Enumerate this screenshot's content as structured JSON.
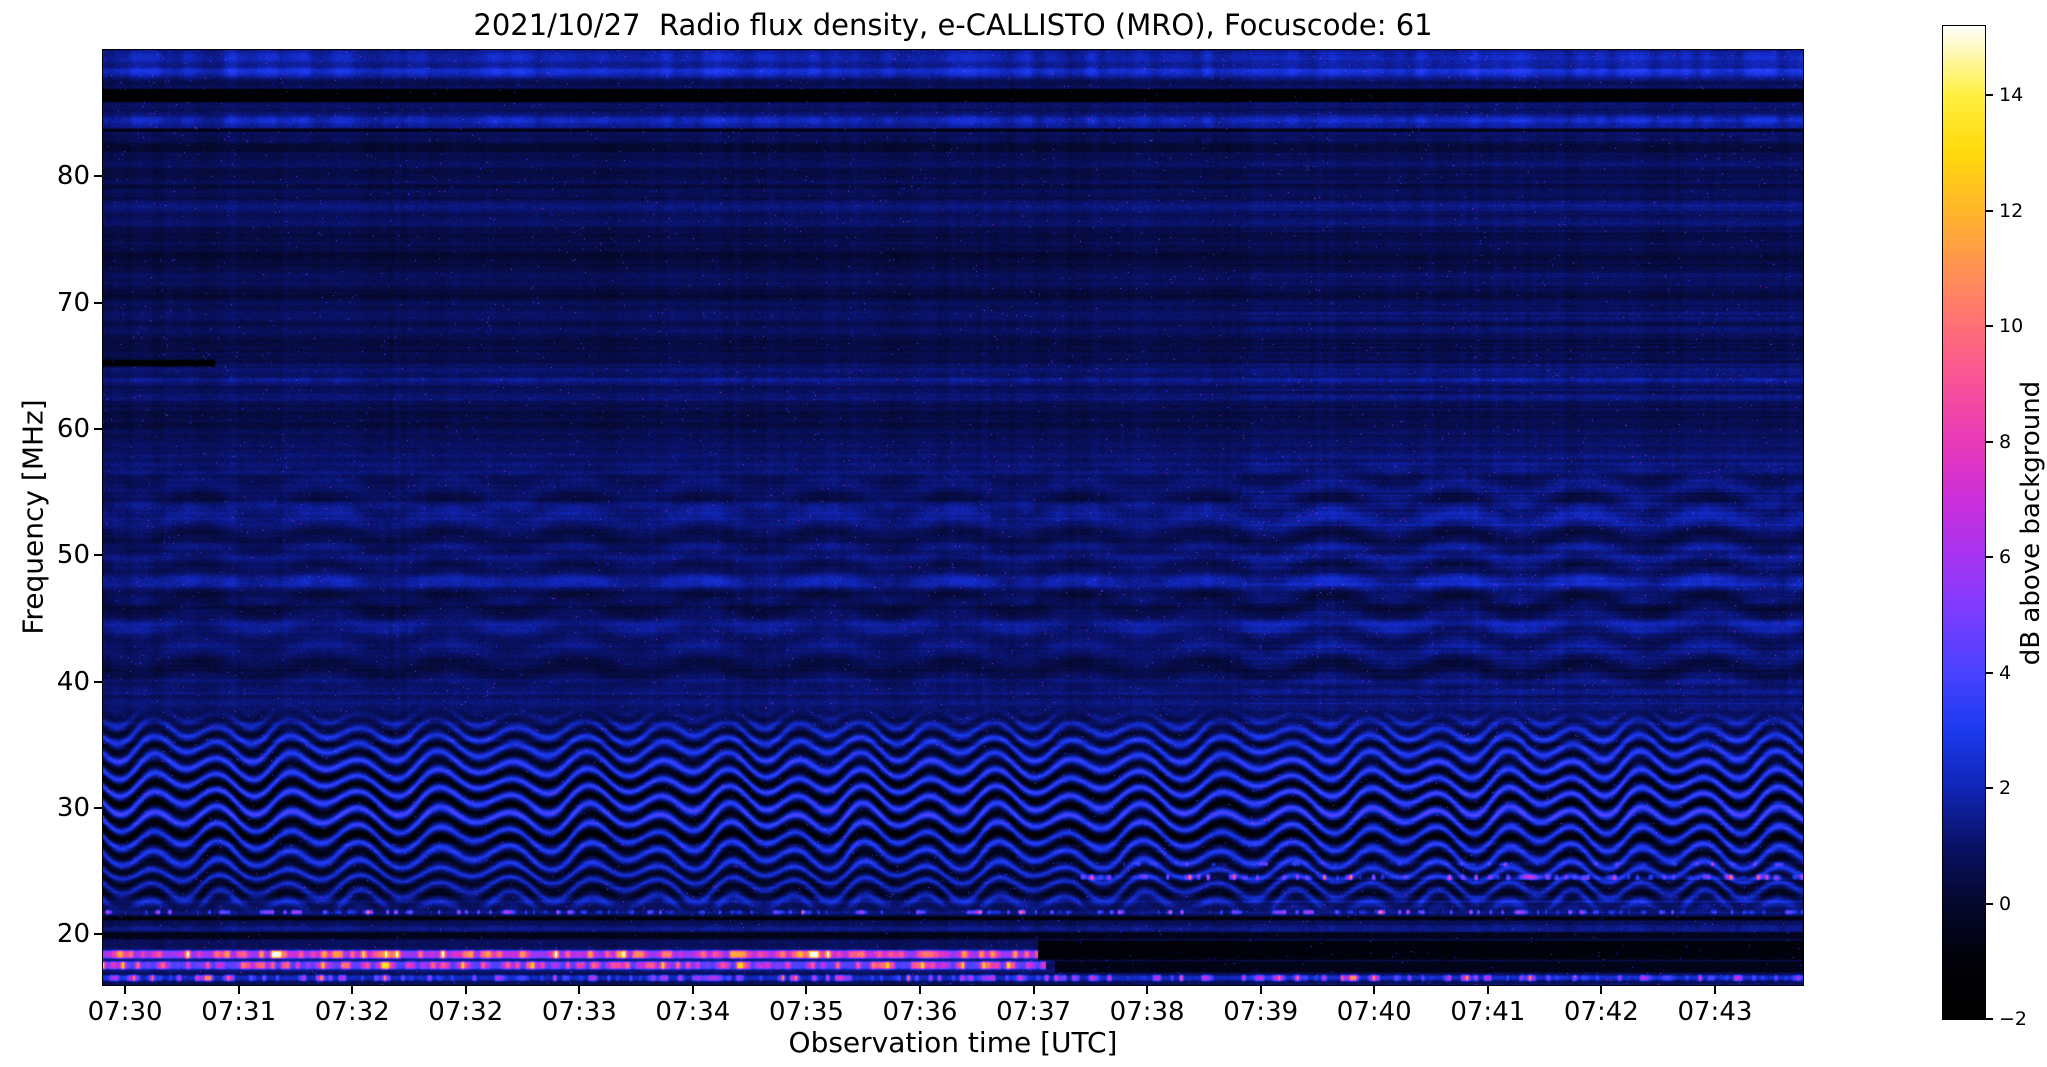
{
  "figure": {
    "background": "#ffffff"
  },
  "chart_data": {
    "type": "heatmap",
    "title": "2021/10/27  Radio flux density, e-CALLISTO (MRO), Focuscode: 61",
    "xlabel": "Observation time [UTC]",
    "ylabel": "Frequency [MHz]",
    "colorbar_label": "dB above background",
    "x_tick_labels": [
      "07:30",
      "07:31",
      "07:32",
      "07:32",
      "07:33",
      "07:34",
      "07:35",
      "07:36",
      "07:37",
      "07:38",
      "07:39",
      "07:40",
      "07:41",
      "07:42",
      "07:43"
    ],
    "y_ticks_mhz": [
      20,
      30,
      40,
      50,
      60,
      70,
      80
    ],
    "colorbar_ticks": [
      {
        "value": -2,
        "label": "−2"
      },
      {
        "value": 0,
        "label": "0"
      },
      {
        "value": 2,
        "label": "2"
      },
      {
        "value": 4,
        "label": "4"
      },
      {
        "value": 6,
        "label": "6"
      },
      {
        "value": 8,
        "label": "8"
      },
      {
        "value": 10,
        "label": "10"
      },
      {
        "value": 12,
        "label": "12"
      },
      {
        "value": 14,
        "label": "14"
      }
    ],
    "freq_range_mhz": [
      16,
      90
    ],
    "time_range_utc": [
      "07:30",
      "07:45"
    ],
    "value_range_db": [
      -2,
      15.2
    ],
    "background_level_db": 0.8,
    "colormap_stops": [
      [
        0.0,
        "#000000"
      ],
      [
        0.058,
        "#010108"
      ],
      [
        0.116,
        "#05082e"
      ],
      [
        0.174,
        "#0a1268"
      ],
      [
        0.233,
        "#1126b8"
      ],
      [
        0.291,
        "#1c3af0"
      ],
      [
        0.349,
        "#4a42ff"
      ],
      [
        0.407,
        "#7a3cff"
      ],
      [
        0.465,
        "#a834f2"
      ],
      [
        0.523,
        "#cc2eda"
      ],
      [
        0.581,
        "#e83ab8"
      ],
      [
        0.64,
        "#f85298"
      ],
      [
        0.698,
        "#ff7076"
      ],
      [
        0.756,
        "#ff9252"
      ],
      [
        0.814,
        "#ffb62a"
      ],
      [
        0.872,
        "#ffd90c"
      ],
      [
        0.93,
        "#ffef40"
      ],
      [
        1.0,
        "#ffffff"
      ]
    ],
    "seam": {
      "t": 0.67,
      "brightness_delta": 0.08,
      "note": "background/texture step just before 07:40"
    },
    "ripples": {
      "f_lo": 21.4,
      "f_hi": 38.3,
      "wavelength_mhz": 1.38,
      "cycles": 24,
      "amp_mhz": 0.95,
      "center_mhz": 30.2,
      "width_mhz": 5.6
    },
    "ripples2": {
      "f_lo": 38.5,
      "f_hi": 58.5,
      "wavelength_mhz": 2.6,
      "cycles": 13.5,
      "amp": 0.35
    },
    "rfi_lines": [
      {
        "f0": 18.05,
        "f1": 18.8,
        "t0": 0.0,
        "t1": 0.55,
        "base": 4.5,
        "var": 7.5,
        "speed": 300,
        "sparse": 0.15
      },
      {
        "f0": 17.2,
        "f1": 17.9,
        "t0": 0.0,
        "t1": 0.555,
        "base": 3.5,
        "var": 7.0,
        "speed": 340,
        "sparse": 0.2
      },
      {
        "f0": 16.25,
        "f1": 16.85,
        "t0": 0.0,
        "t1": 1.0,
        "base": 1.5,
        "var": 6.5,
        "speed": 380,
        "sparse": 0.35
      },
      {
        "f0": 21.55,
        "f1": 21.98,
        "t0": 0.0,
        "t1": 1.0,
        "base": 0.5,
        "var": 8.0,
        "speed": 430,
        "sparse": 0.55
      },
      {
        "f0": 24.25,
        "f1": 24.8,
        "t0": 0.57,
        "t1": 1.0,
        "base": 0.5,
        "var": 5.5,
        "speed": 380,
        "sparse": 0.5
      },
      {
        "f0": 25.35,
        "f1": 25.75,
        "t0": 0.6,
        "t1": 1.0,
        "base": 0.3,
        "var": 3.5,
        "speed": 320,
        "sparse": 0.6
      }
    ],
    "dark_regions": [
      {
        "f0": 64.95,
        "f1": 65.5,
        "t0": 0.0,
        "t1": 0.066,
        "v": -2.2
      },
      {
        "f0": 85.85,
        "f1": 86.95,
        "t0": 0.0,
        "t1": 1.0,
        "v": -1.6
      },
      {
        "f0": 83.5,
        "f1": 83.8,
        "t0": 0.0,
        "t1": 1.0,
        "v": -1.0
      },
      {
        "f0": 17.95,
        "f1": 19.55,
        "t0": 0.55,
        "t1": 1.0,
        "v": -1.2
      },
      {
        "f0": 16.95,
        "f1": 17.95,
        "t0": 0.56,
        "t1": 1.0,
        "v": -0.8
      },
      {
        "f0": 19.6,
        "f1": 20.2,
        "t0": 0.0,
        "t1": 1.0,
        "v": -0.6
      },
      {
        "f0": 21.1,
        "f1": 21.45,
        "t0": 0.0,
        "t1": 1.0,
        "v": -1.3
      }
    ],
    "bright_lines": [
      {
        "f": 89.5,
        "w": 0.5,
        "amp": 1.5
      },
      {
        "f": 88.3,
        "w": 0.5,
        "amp": 1.7
      },
      {
        "f": 84.4,
        "w": 0.45,
        "amp": 1.5
      },
      {
        "f": 82.9,
        "w": 0.3,
        "amp": 0.7
      },
      {
        "f": 63.9,
        "w": 0.3,
        "amp": 0.7
      },
      {
        "f": 53.8,
        "w": 0.6,
        "amp": 0.55
      },
      {
        "f": 47.9,
        "w": 0.4,
        "amp": 0.8
      },
      {
        "f": 46.3,
        "w": 0.3,
        "amp": 0.6
      },
      {
        "f": 22.55,
        "w": 0.3,
        "amp": 0.7
      },
      {
        "f": 20.6,
        "w": 0.3,
        "amp": 0.6
      }
    ]
  }
}
